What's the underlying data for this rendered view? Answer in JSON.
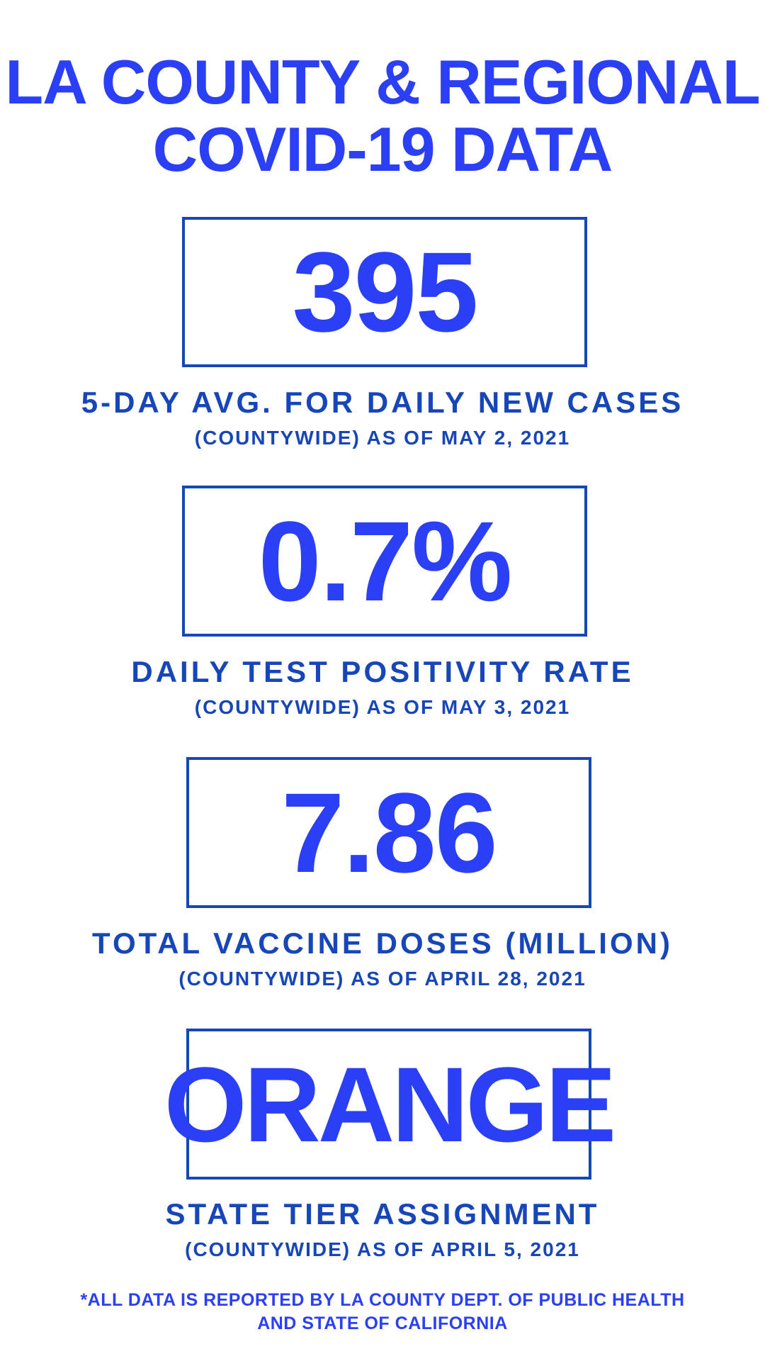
{
  "title": {
    "line1": "LA COUNTY & REGIONAL",
    "line2": "COVID-19 DATA"
  },
  "stats": [
    {
      "value": "395",
      "label": "5-DAY AVG. FOR DAILY NEW CASES",
      "date": "(COUNTYWIDE) AS OF MAY 2, 2021"
    },
    {
      "value": "0.7%",
      "label": "DAILY TEST POSITIVITY RATE",
      "date": "(COUNTYWIDE) AS OF MAY 3, 2021"
    },
    {
      "value": "7.86",
      "label": "TOTAL VACCINE DOSES (MILLION)",
      "date": "(COUNTYWIDE) AS OF APRIL 28, 2021"
    },
    {
      "value": "ORANGE",
      "label": "STATE TIER ASSIGNMENT",
      "date": "(COUNTYWIDE) AS OF APRIL 5, 2021"
    }
  ],
  "footnote": {
    "line1": "*ALL DATA IS REPORTED BY LA COUNTY DEPT. OF PUBLIC HEALTH",
    "line2": "AND STATE OF CALIFORNIA"
  },
  "colors": {
    "accent": "#2b3ff5",
    "border": "#1746b8",
    "background": "#ffffff"
  }
}
